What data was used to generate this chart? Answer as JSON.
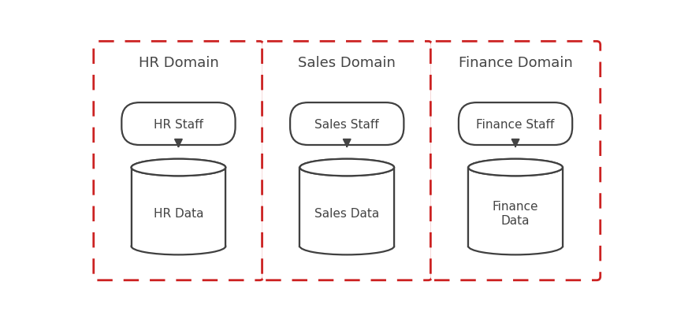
{
  "domains": [
    {
      "title": "HR Domain",
      "staff_label": "HR Staff",
      "data_label": "HR Data"
    },
    {
      "title": "Sales Domain",
      "staff_label": "Sales Staff",
      "data_label": "Sales Data"
    },
    {
      "title": "Finance Domain",
      "staff_label": "Finance Staff",
      "data_label": "Finance\nData"
    }
  ],
  "bg_color": "#ffffff",
  "box_border_color": "#cc2222",
  "shape_border_color": "#404040",
  "text_color": "#444444",
  "title_color": "#444444",
  "arrow_color": "#444444",
  "font_size_title": 13,
  "font_size_label": 11,
  "fig_width": 8.59,
  "fig_height": 4.06
}
